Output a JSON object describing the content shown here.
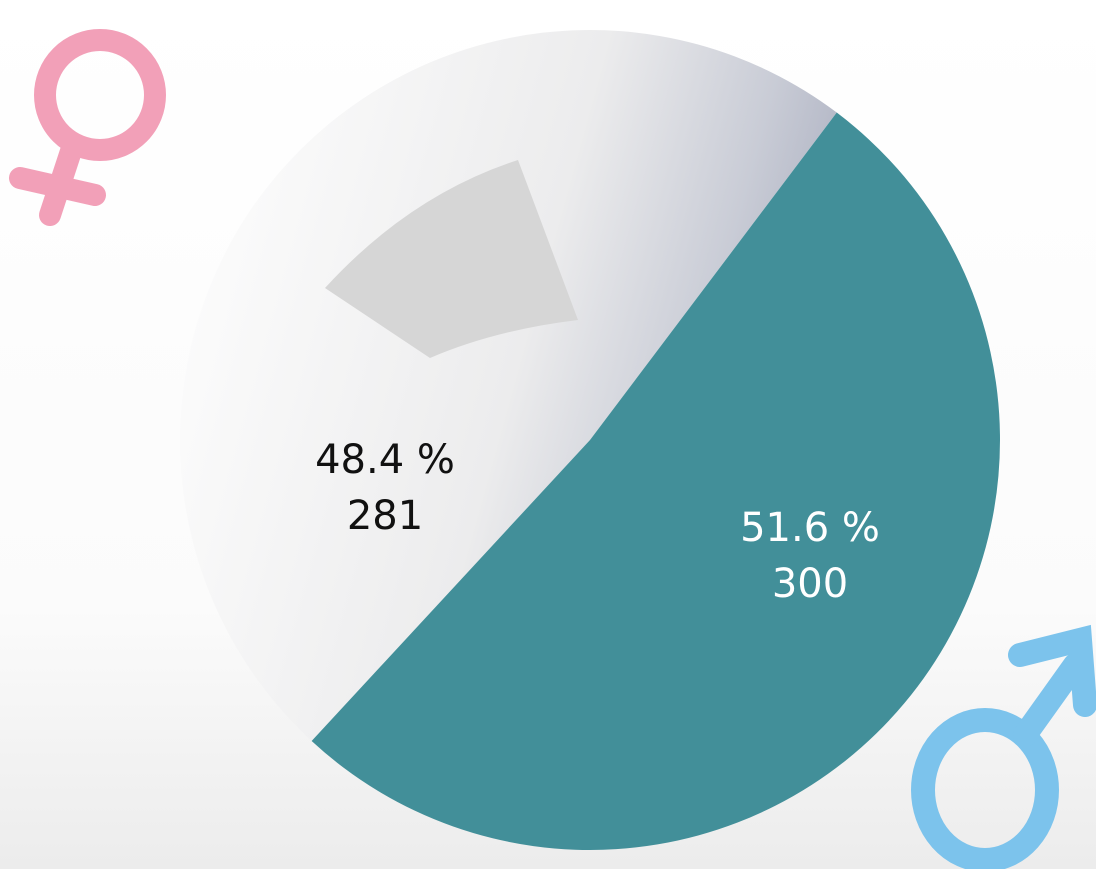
{
  "chart_data": {
    "type": "pie",
    "values": [
      48.4,
      51.6
    ],
    "value_labels": [
      "48.4 %",
      "51.6 %"
    ],
    "counts": [
      281,
      300
    ],
    "colors": [
      "#eeeeee",
      "#428f99"
    ],
    "label_colors": [
      "#111111",
      "#ffffff"
    ]
  }
}
